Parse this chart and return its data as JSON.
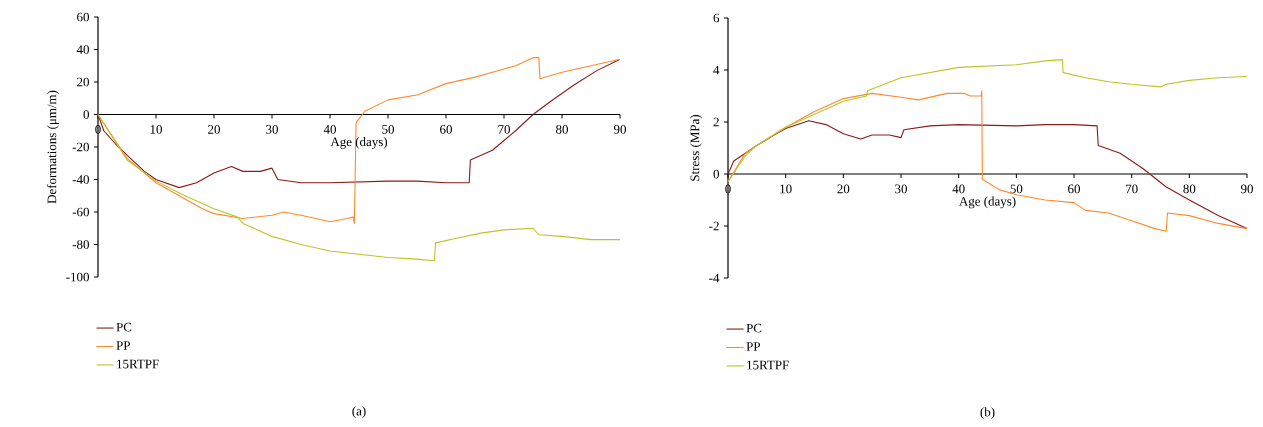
{
  "chart_data": [
    {
      "type": "line",
      "xlabel": "Age (days)",
      "ylabel": "Deformations (μm/m)",
      "annotations": [
        "(a)"
      ],
      "xlim": [
        0,
        90
      ],
      "ylim": [
        -100,
        60
      ],
      "xticks": [
        0,
        10,
        20,
        30,
        40,
        50,
        60,
        70,
        80,
        90
      ],
      "yticks": [
        -100,
        -80,
        -60,
        -40,
        -20,
        0,
        20,
        40,
        60
      ],
      "legend": "bottom left",
      "grid": false,
      "series": [
        {
          "name": "PC",
          "color": "#8b1a1a",
          "x": [
            0,
            1,
            3,
            5,
            8,
            10,
            14,
            17,
            20,
            23,
            25,
            28,
            30,
            31,
            35,
            40,
            50,
            55,
            60,
            64,
            64.2,
            68,
            72,
            75,
            78,
            82,
            86,
            90
          ],
          "values": [
            0,
            -10,
            -18,
            -25,
            -35,
            -40,
            -45,
            -42,
            -36,
            -32,
            -35,
            -35,
            -33,
            -40,
            -42,
            -42,
            -41,
            -41,
            -42,
            -42,
            -28,
            -22,
            -10,
            0,
            8,
            18,
            27,
            34
          ]
        },
        {
          "name": "PP",
          "color": "#ff8a2a",
          "x": [
            0,
            5,
            10,
            15,
            18,
            20,
            25,
            30,
            32,
            35,
            40,
            43,
            44,
            44.2,
            44.5,
            46,
            50,
            55,
            60,
            65,
            68,
            72,
            75,
            76,
            76.2,
            80,
            85,
            90
          ],
          "values": [
            0,
            -27,
            -42,
            -52,
            -58,
            -61,
            -64,
            -62,
            -60,
            -62,
            -66,
            -64,
            -63,
            -67,
            -5,
            2,
            9,
            12,
            19,
            23,
            26,
            30,
            35,
            35,
            22,
            26,
            30,
            34
          ]
        },
        {
          "name": "15RTPF",
          "color": "#bcc42a",
          "x": [
            0,
            5,
            10,
            15,
            20,
            24,
            25,
            30,
            35,
            40,
            45,
            50,
            55,
            58,
            58.2,
            62,
            66,
            70,
            75,
            76,
            80,
            85,
            90
          ],
          "values": [
            0,
            -28,
            -41,
            -50,
            -58,
            -63,
            -67,
            -75,
            -80,
            -84,
            -86,
            -88,
            -89,
            -90,
            -79,
            -76,
            -73,
            -71,
            -70,
            -74,
            -75,
            -77,
            -77
          ]
        }
      ]
    },
    {
      "type": "line",
      "xlabel": "Age (days)",
      "ylabel": "Stress (MPa)",
      "annotations": [
        "(b)"
      ],
      "xlim": [
        0,
        90
      ],
      "ylim": [
        -4,
        6
      ],
      "xticks": [
        0,
        10,
        20,
        30,
        40,
        50,
        60,
        70,
        80,
        90
      ],
      "yticks": [
        -4,
        -2,
        0,
        2,
        4,
        6
      ],
      "legend": "bottom left",
      "grid": false,
      "series": [
        {
          "name": "PC",
          "color": "#8b1a1a",
          "x": [
            0,
            1,
            3,
            5,
            8,
            10,
            14,
            17,
            20,
            23,
            25,
            28,
            30,
            30.5,
            35,
            40,
            50,
            55,
            60,
            64,
            64.2,
            68,
            72,
            76,
            80,
            85,
            90
          ],
          "values": [
            0,
            0.5,
            0.8,
            1.1,
            1.5,
            1.75,
            2.05,
            1.9,
            1.55,
            1.35,
            1.5,
            1.5,
            1.4,
            1.7,
            1.85,
            1.9,
            1.85,
            1.9,
            1.9,
            1.85,
            1.1,
            0.8,
            0.2,
            -0.5,
            -1.0,
            -1.6,
            -2.1
          ]
        },
        {
          "name": "PP",
          "color": "#ff8a2a",
          "x": [
            0,
            3,
            5,
            10,
            15,
            20,
            25,
            30,
            33,
            38,
            41,
            42,
            43.9,
            44,
            44.1,
            47,
            50,
            55,
            60,
            62,
            66,
            70,
            74,
            76,
            76.2,
            80,
            85,
            90
          ],
          "values": [
            -0.3,
            0.8,
            1.1,
            1.8,
            2.4,
            2.9,
            3.1,
            2.95,
            2.85,
            3.1,
            3.1,
            3.0,
            3.0,
            3.2,
            -0.2,
            -0.6,
            -0.8,
            -1.0,
            -1.1,
            -1.4,
            -1.5,
            -1.8,
            -2.1,
            -2.2,
            -1.5,
            -1.6,
            -1.9,
            -2.1
          ]
        },
        {
          "name": "15RTPF",
          "color": "#bcc42a",
          "x": [
            0,
            3,
            5,
            10,
            15,
            20,
            24,
            24.2,
            30,
            40,
            50,
            55,
            58,
            58.1,
            62,
            66,
            70,
            75,
            76,
            80,
            85,
            90
          ],
          "values": [
            -0.3,
            0.7,
            1.1,
            1.8,
            2.3,
            2.8,
            3.0,
            3.2,
            3.7,
            4.1,
            4.2,
            4.35,
            4.4,
            3.9,
            3.7,
            3.55,
            3.45,
            3.35,
            3.45,
            3.6,
            3.7,
            3.75
          ]
        }
      ]
    }
  ]
}
